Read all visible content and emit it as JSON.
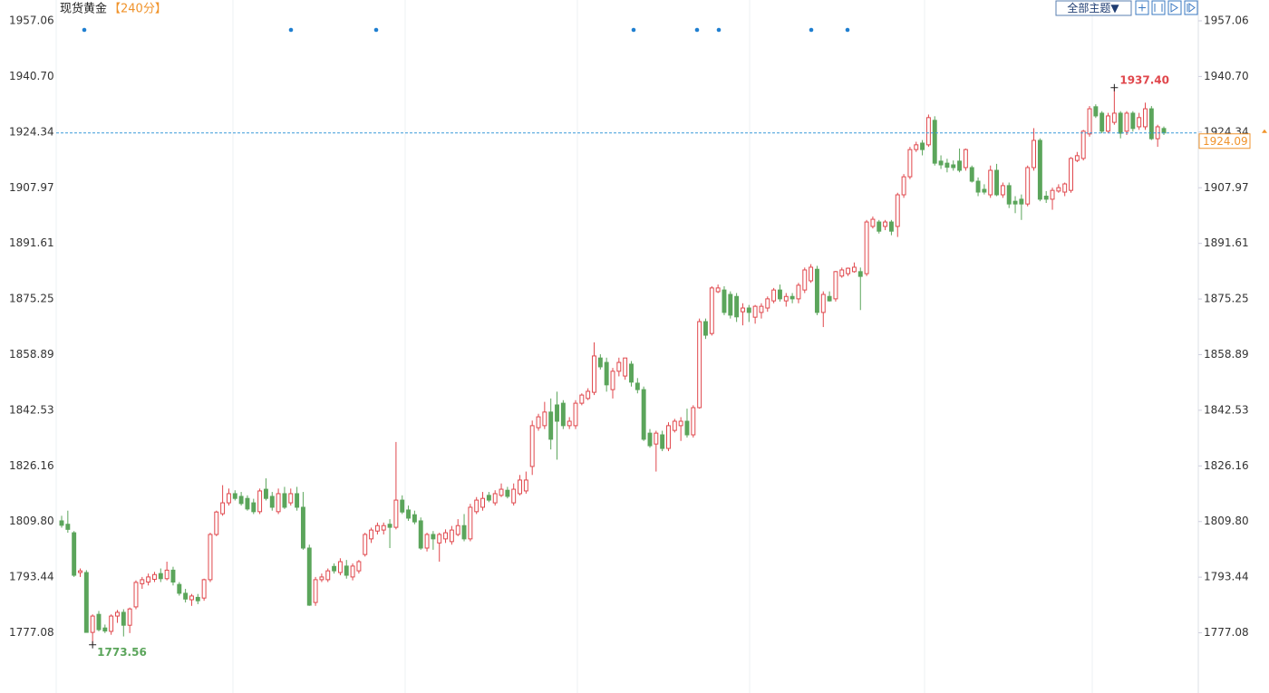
{
  "header": {
    "symbol": "现货黄金",
    "period": "【240分】",
    "theme_button": "全部主题▼"
  },
  "chart_data": {
    "type": "candlestick",
    "ylim": [
      1764.7,
      1963.19
    ],
    "yticks": [
      1957.06,
      {
        "value": 1940.7,
        "label": "1940.70"
      },
      1924.34,
      1907.97,
      1891.61,
      1875.25,
      1858.89,
      1842.53,
      1826.16,
      {
        "value": 1809.8,
        "label": "1809.80"
      },
      1793.44,
      1777.08
    ],
    "up_color": "#e0474c",
    "down_color": "#5ba55b",
    "last_color": "#f0932b",
    "high_marker": {
      "value": 1937.4,
      "label": "1937.40"
    },
    "low_marker": 1773.56,
    "last_price": 1924.09,
    "series": [
      {
        "values": [
          [
            1810.0,
            1811.5,
            1808.0,
            1808.7
          ],
          [
            1809.0,
            1813.0,
            1806.5,
            1807.5
          ],
          [
            1806.5,
            1807.0,
            1793.5,
            1794.0
          ],
          [
            1794.8,
            1796.0,
            1793.5,
            1795.3
          ],
          [
            1794.8,
            1795.5,
            1777.2,
            1777.2
          ],
          [
            1777.2,
            1782.5,
            1773.56,
            1782.0
          ],
          [
            1782.5,
            1783.5,
            1777.5,
            1778.0
          ],
          [
            1778.5,
            1779.5,
            1777.0,
            1777.6
          ],
          [
            1777.5,
            1782.5,
            1776.5,
            1782.0
          ],
          [
            1782.0,
            1783.8,
            1780.0,
            1783.1
          ],
          [
            1783.1,
            1784.0,
            1776.0,
            1779.3
          ],
          [
            1779.3,
            1784.5,
            1777.0,
            1784.1
          ],
          [
            1784.7,
            1792.5,
            1784.0,
            1791.9
          ],
          [
            1791.5,
            1793.5,
            1790.0,
            1792.7
          ],
          [
            1792.0,
            1794.5,
            1791.0,
            1793.5
          ],
          [
            1792.8,
            1795.0,
            1792.0,
            1794.2
          ],
          [
            1794.5,
            1796.0,
            1792.0,
            1793.0
          ],
          [
            1793.0,
            1798.0,
            1792.5,
            1795.5
          ],
          [
            1795.5,
            1796.5,
            1791.0,
            1792.0
          ],
          [
            1791.3,
            1792.0,
            1788.0,
            1788.7
          ],
          [
            1788.7,
            1790.0,
            1786.0,
            1787.0
          ],
          [
            1786.8,
            1788.5,
            1785.0,
            1787.9
          ],
          [
            1787.5,
            1788.5,
            1785.5,
            1786.5
          ],
          [
            1787.3,
            1793.0,
            1786.5,
            1792.7
          ],
          [
            1792.7,
            1806.5,
            1792.0,
            1806.0
          ],
          [
            1806.0,
            1813.0,
            1805.5,
            1812.6
          ],
          [
            1812.1,
            1820.5,
            1811.5,
            1815.3
          ],
          [
            1815.3,
            1819.5,
            1814.5,
            1818.0
          ],
          [
            1818.0,
            1819.0,
            1816.0,
            1816.6
          ],
          [
            1817.2,
            1818.5,
            1814.5,
            1815.1
          ],
          [
            1816.6,
            1817.5,
            1813.0,
            1813.5
          ],
          [
            1815.3,
            1816.5,
            1812.0,
            1812.7
          ],
          [
            1812.7,
            1819.5,
            1812.0,
            1818.8
          ],
          [
            1819.3,
            1822.5,
            1816.0,
            1816.6
          ],
          [
            1817.2,
            1818.5,
            1813.0,
            1814.0
          ],
          [
            1812.7,
            1819.5,
            1812.0,
            1818.0
          ],
          [
            1818.0,
            1820.0,
            1813.5,
            1814.0
          ],
          [
            1815.3,
            1819.5,
            1814.5,
            1818.0
          ],
          [
            1818.0,
            1820.0,
            1813.0,
            1814.0
          ],
          [
            1814.0,
            1818.5,
            1801.5,
            1802.0
          ],
          [
            1802.0,
            1803.0,
            1785.0,
            1785.2
          ],
          [
            1786.0,
            1793.5,
            1785.0,
            1792.7
          ],
          [
            1792.7,
            1794.5,
            1792.0,
            1793.5
          ],
          [
            1792.7,
            1796.0,
            1792.0,
            1795.3
          ],
          [
            1796.6,
            1797.5,
            1794.5,
            1795.3
          ],
          [
            1794.8,
            1799.0,
            1794.0,
            1798.0
          ],
          [
            1796.7,
            1798.5,
            1793.0,
            1794.0
          ],
          [
            1793.5,
            1797.5,
            1792.5,
            1796.7
          ],
          [
            1795.3,
            1798.5,
            1794.5,
            1798.0
          ],
          [
            1800.1,
            1806.5,
            1799.5,
            1806.0
          ],
          [
            1804.7,
            1808.0,
            1803.5,
            1807.3
          ],
          [
            1807.0,
            1809.5,
            1806.0,
            1808.6
          ],
          [
            1807.3,
            1809.5,
            1806.0,
            1808.6
          ],
          [
            1809.0,
            1810.5,
            1802.0,
            1808.1
          ],
          [
            1808.1,
            1833.2,
            1807.5,
            1816.1
          ],
          [
            1816.1,
            1817.5,
            1812.0,
            1812.6
          ],
          [
            1813.2,
            1814.5,
            1810.0,
            1810.8
          ],
          [
            1811.8,
            1813.0,
            1809.0,
            1809.7
          ],
          [
            1810.0,
            1811.0,
            1801.5,
            1802.0
          ],
          [
            1802.0,
            1806.5,
            1801.0,
            1806.0
          ],
          [
            1806.0,
            1807.0,
            1801.5,
            1804.7
          ],
          [
            1803.5,
            1806.5,
            1798.0,
            1806.0
          ],
          [
            1804.7,
            1807.5,
            1803.5,
            1806.5
          ],
          [
            1803.9,
            1808.5,
            1803.0,
            1807.3
          ],
          [
            1806.0,
            1810.5,
            1805.5,
            1808.6
          ],
          [
            1808.6,
            1812.0,
            1804.0,
            1804.7
          ],
          [
            1804.7,
            1815.0,
            1804.0,
            1814.0
          ],
          [
            1812.7,
            1817.0,
            1812.0,
            1816.1
          ],
          [
            1814.0,
            1818.5,
            1813.0,
            1816.6
          ],
          [
            1817.5,
            1818.5,
            1815.5,
            1816.1
          ],
          [
            1815.3,
            1819.0,
            1814.5,
            1818.0
          ],
          [
            1817.5,
            1821.0,
            1817.0,
            1819.3
          ],
          [
            1819.0,
            1820.0,
            1816.6,
            1817.2
          ],
          [
            1815.3,
            1821.0,
            1814.5,
            1819.3
          ],
          [
            1818.0,
            1823.5,
            1817.5,
            1822.0
          ],
          [
            1818.8,
            1824.5,
            1818.0,
            1822.0
          ],
          [
            1826.0,
            1839.5,
            1823.5,
            1838.0
          ],
          [
            1837.4,
            1841.5,
            1836.5,
            1840.6
          ],
          [
            1838.0,
            1845.0,
            1837.0,
            1842.0
          ],
          [
            1842.0,
            1846.0,
            1831.0,
            1834.0
          ],
          [
            1844.1,
            1848.0,
            1828.0,
            1839.3
          ],
          [
            1844.6,
            1845.5,
            1837.0,
            1838.0
          ],
          [
            1838.0,
            1840.5,
            1837.0,
            1839.3
          ],
          [
            1838.0,
            1845.5,
            1837.0,
            1844.6
          ],
          [
            1844.6,
            1847.5,
            1844.0,
            1847.0
          ],
          [
            1846.0,
            1849.0,
            1845.5,
            1848.1
          ],
          [
            1847.8,
            1862.5,
            1847.0,
            1858.5
          ],
          [
            1857.9,
            1859.0,
            1854.5,
            1855.3
          ],
          [
            1856.6,
            1858.0,
            1848.0,
            1850.0
          ],
          [
            1848.6,
            1855.0,
            1846.0,
            1854.0
          ],
          [
            1854.0,
            1858.0,
            1852.5,
            1856.6
          ],
          [
            1852.6,
            1857.5,
            1851.5,
            1857.9
          ],
          [
            1856.1,
            1857.0,
            1849.5,
            1850.8
          ],
          [
            1850.5,
            1852.0,
            1847.5,
            1848.6
          ],
          [
            1848.6,
            1849.5,
            1833.5,
            1834.0
          ],
          [
            1835.8,
            1837.0,
            1831.5,
            1832.1
          ],
          [
            1832.6,
            1836.5,
            1824.5,
            1835.8
          ],
          [
            1835.3,
            1836.5,
            1830.5,
            1831.3
          ],
          [
            1831.3,
            1839.0,
            1830.5,
            1838.0
          ],
          [
            1836.6,
            1840.0,
            1836.0,
            1839.3
          ],
          [
            1838.0,
            1840.5,
            1833.5,
            1839.3
          ],
          [
            1839.3,
            1843.0,
            1834.5,
            1835.3
          ],
          [
            1835.3,
            1844.0,
            1834.5,
            1843.3
          ],
          [
            1843.3,
            1869.5,
            1843.0,
            1868.6
          ],
          [
            1868.6,
            1869.5,
            1863.5,
            1864.6
          ],
          [
            1865.1,
            1879.0,
            1864.5,
            1878.5
          ],
          [
            1877.4,
            1879.5,
            1877.0,
            1878.5
          ],
          [
            1877.9,
            1879.0,
            1870.5,
            1871.3
          ],
          [
            1876.6,
            1877.5,
            1869.5,
            1870.5
          ],
          [
            1876.0,
            1877.0,
            1868.5,
            1870.0
          ],
          [
            1871.5,
            1874.0,
            1867.5,
            1872.6
          ],
          [
            1872.6,
            1873.5,
            1868.5,
            1871.3
          ],
          [
            1869.9,
            1873.5,
            1868.0,
            1873.1
          ],
          [
            1871.3,
            1874.0,
            1869.5,
            1873.1
          ],
          [
            1872.6,
            1876.0,
            1871.5,
            1875.3
          ],
          [
            1874.7,
            1878.5,
            1874.0,
            1877.9
          ],
          [
            1877.9,
            1879.5,
            1874.5,
            1875.3
          ],
          [
            1874.7,
            1877.0,
            1873.0,
            1876.0
          ],
          [
            1876.0,
            1877.0,
            1874.0,
            1875.3
          ],
          [
            1875.3,
            1880.0,
            1874.0,
            1879.3
          ],
          [
            1877.9,
            1884.5,
            1877.0,
            1883.8
          ],
          [
            1880.6,
            1885.5,
            1880.0,
            1884.6
          ],
          [
            1884.0,
            1885.0,
            1870.5,
            1871.3
          ],
          [
            1871.3,
            1877.5,
            1867.0,
            1876.6
          ],
          [
            1876.0,
            1877.5,
            1874.5,
            1874.7
          ],
          [
            1875.3,
            1883.5,
            1874.5,
            1883.3
          ],
          [
            1882.0,
            1884.5,
            1881.5,
            1883.8
          ],
          [
            1882.7,
            1884.5,
            1882.0,
            1884.3
          ],
          [
            1883.3,
            1886.0,
            1883.0,
            1884.6
          ],
          [
            1883.3,
            1884.5,
            1872.0,
            1881.9
          ],
          [
            1882.7,
            1898.5,
            1882.0,
            1897.9
          ],
          [
            1896.6,
            1899.5,
            1896.0,
            1898.7
          ],
          [
            1897.9,
            1898.5,
            1894.5,
            1895.2
          ],
          [
            1896.6,
            1898.5,
            1895.5,
            1897.9
          ],
          [
            1897.9,
            1898.5,
            1894.0,
            1895.2
          ],
          [
            1896.6,
            1906.5,
            1893.5,
            1905.9
          ],
          [
            1905.9,
            1912.0,
            1905.0,
            1911.2
          ],
          [
            1911.2,
            1920.0,
            1910.5,
            1919.2
          ],
          [
            1919.2,
            1921.5,
            1918.5,
            1920.6
          ],
          [
            1921.1,
            1922.0,
            1917.5,
            1919.2
          ],
          [
            1920.6,
            1929.5,
            1920.0,
            1928.6
          ],
          [
            1927.8,
            1929.0,
            1914.5,
            1915.2
          ],
          [
            1915.8,
            1917.5,
            1913.5,
            1914.7
          ],
          [
            1915.2,
            1916.5,
            1912.5,
            1914.0
          ],
          [
            1914.7,
            1916.0,
            1913.0,
            1913.9
          ],
          [
            1915.8,
            1919.5,
            1912.5,
            1913.1
          ],
          [
            1913.9,
            1919.5,
            1913.0,
            1919.2
          ],
          [
            1913.9,
            1914.5,
            1909.5,
            1909.9
          ],
          [
            1909.9,
            1911.0,
            1905.5,
            1906.7
          ],
          [
            1907.5,
            1909.0,
            1906.0,
            1906.7
          ],
          [
            1905.9,
            1914.5,
            1905.0,
            1913.1
          ],
          [
            1913.1,
            1915.0,
            1905.5,
            1905.9
          ],
          [
            1905.9,
            1909.5,
            1905.0,
            1908.6
          ],
          [
            1908.6,
            1909.5,
            1902.0,
            1903.2
          ],
          [
            1904.0,
            1905.5,
            1900.5,
            1903.2
          ],
          [
            1904.6,
            1906.0,
            1898.5,
            1903.2
          ],
          [
            1903.2,
            1914.5,
            1902.5,
            1913.9
          ],
          [
            1913.9,
            1925.5,
            1913.0,
            1921.9
          ],
          [
            1921.9,
            1922.5,
            1904.0,
            1904.6
          ],
          [
            1905.5,
            1907.0,
            1903.5,
            1904.6
          ],
          [
            1904.6,
            1908.0,
            1901.5,
            1907.2
          ],
          [
            1907.0,
            1909.0,
            1906.5,
            1908.0
          ],
          [
            1906.7,
            1909.5,
            1905.5,
            1909.1
          ],
          [
            1907.2,
            1917.0,
            1906.5,
            1916.6
          ],
          [
            1916.0,
            1918.5,
            1915.5,
            1917.4
          ],
          [
            1916.6,
            1925.0,
            1916.0,
            1924.6
          ],
          [
            1923.8,
            1932.0,
            1923.0,
            1931.2
          ],
          [
            1931.8,
            1932.5,
            1928.5,
            1929.1
          ],
          [
            1929.9,
            1930.5,
            1924.0,
            1924.6
          ],
          [
            1924.6,
            1930.0,
            1924.0,
            1929.1
          ],
          [
            1927.2,
            1937.4,
            1926.5,
            1929.9
          ],
          [
            1929.9,
            1930.5,
            1922.5,
            1924.0
          ],
          [
            1924.6,
            1930.5,
            1923.5,
            1929.9
          ],
          [
            1929.9,
            1930.5,
            1924.5,
            1925.4
          ],
          [
            1925.9,
            1930.0,
            1925.0,
            1928.6
          ],
          [
            1925.9,
            1933.0,
            1925.0,
            1931.2
          ],
          [
            1931.2,
            1932.0,
            1922.0,
            1922.4
          ],
          [
            1922.4,
            1926.5,
            1920.0,
            1925.9
          ],
          [
            1925.4,
            1926.0,
            1923.5,
            1924.09
          ]
        ]
      }
    ]
  }
}
